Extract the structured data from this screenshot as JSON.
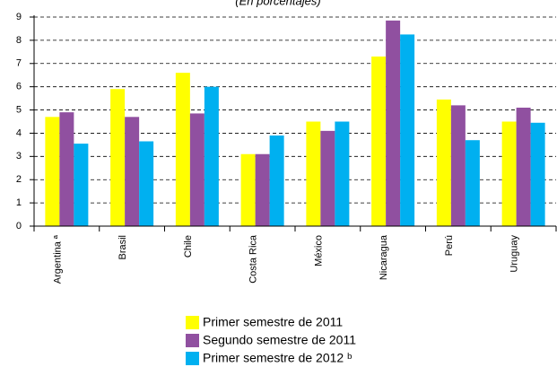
{
  "chart_data": {
    "type": "bar",
    "subtitle": "(En porcentajes)",
    "categories": [
      "Argentina ª",
      "Brasil",
      "Chile",
      "Costa Rica",
      "México",
      "Nicaragua",
      "Perú",
      "Uruguay"
    ],
    "series": [
      {
        "name": "Primer semestre de 2011",
        "color": "#ffff00",
        "values": [
          4.7,
          5.9,
          6.6,
          3.1,
          4.5,
          7.3,
          5.45,
          4.5
        ]
      },
      {
        "name": "Segundo semestre de 2011",
        "color": "#9050a0",
        "values": [
          4.9,
          4.7,
          4.85,
          3.1,
          4.1,
          8.85,
          5.2,
          5.1
        ]
      },
      {
        "name": "Primer semestre de 2012 ᵇ",
        "color": "#00b0f0",
        "values": [
          3.55,
          3.65,
          6.0,
          3.9,
          4.5,
          8.25,
          3.7,
          4.45
        ]
      }
    ],
    "ylim": [
      0,
      9
    ],
    "yticks": [
      0,
      1,
      2,
      3,
      4,
      5,
      6,
      7,
      8,
      9
    ],
    "grid": true,
    "legend": "bottom"
  }
}
